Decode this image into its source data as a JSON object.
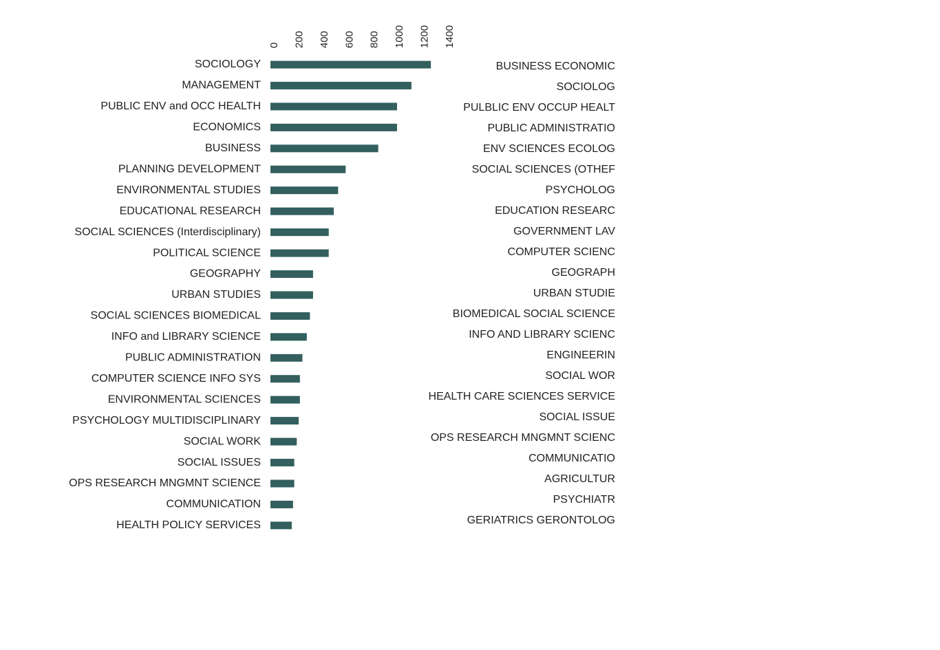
{
  "chart_data": {
    "type": "bar",
    "orientation": "horizontal",
    "color": "#335f5e",
    "categories": [
      "SOCIOLOGY",
      "MANAGEMENT",
      "PUBLIC ENV and OCC HEALTH",
      "ECONOMICS",
      "BUSINESS",
      "PLANNING DEVELOPMENT",
      "ENVIRONMENTAL STUDIES",
      "EDUCATIONAL RESEARCH",
      "SOCIAL SCIENCES (Interdisciplinary)",
      "POLITICAL SCIENCE",
      "GEOGRAPHY",
      "URBAN STUDIES",
      "SOCIAL SCIENCES BIOMEDICAL",
      "INFO and LIBRARY SCIENCE",
      "PUBLIC ADMINISTRATION",
      "COMPUTER SCIENCE INFO SYS",
      "ENVIRONMENTAL SCIENCES",
      "PSYCHOLOGY MULTIDISCIPLINARY",
      "SOCIAL WORK",
      "SOCIAL ISSUES",
      "OPS RESEARCH MNGMNT SCIENCE",
      "COMMUNICATION",
      "HEALTH POLICY SERVICES"
    ],
    "values": [
      1280,
      1125,
      1010,
      1010,
      860,
      600,
      540,
      505,
      465,
      465,
      340,
      340,
      315,
      290,
      255,
      235,
      235,
      225,
      210,
      190,
      190,
      180,
      170
    ],
    "xlim": [
      0,
      1400
    ],
    "xticks": [
      0,
      200,
      400,
      600,
      800,
      1000,
      1200,
      1400
    ],
    "secondary_labels": [
      "BUSINESS ECONOMIC",
      "SOCIOLOG",
      "PULBLIC ENV OCCUP HEALT",
      "PUBLIC ADMINISTRATIO",
      "ENV SCIENCES ECOLOG",
      "SOCIAL SCIENCES (OTHEF",
      "PSYCHOLOG",
      "EDUCATION RESEARC",
      "GOVERNMENT LAV",
      "COMPUTER SCIENC",
      "GEOGRAPH",
      "URBAN STUDIE",
      "BIOMEDICAL SOCIAL SCIENCE",
      "INFO AND LIBRARY SCIENC",
      "ENGINEERIN",
      "SOCIAL WOR",
      "HEALTH CARE SCIENCES SERVICE",
      "SOCIAL ISSUE",
      "OPS RESEARCH MNGMNT SCIENC",
      "COMMUNICATIO",
      "AGRICULTUR",
      "PSYCHIATR",
      "GERIATRICS GERONTOLOG"
    ]
  }
}
